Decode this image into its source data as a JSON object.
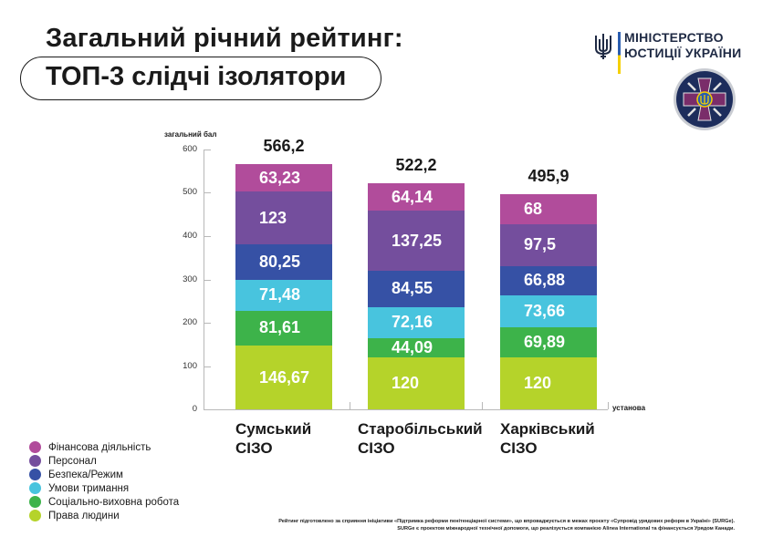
{
  "header": {
    "title_line1": "Загальний річний рейтинг:",
    "title_line2": "ТОП-3 слідчі ізолятори"
  },
  "ministry": {
    "line1": "МІНІСТЕРСТВО",
    "line2": "ЮСТИЦІЇ УКРАЇНИ"
  },
  "chart_data": {
    "type": "bar",
    "stacked": true,
    "title": "Загальний річний рейтинг: ТОП-3 слідчі ізолятори",
    "ylabel": "загальний бал",
    "xlabel": "установа",
    "ylim": [
      0,
      600
    ],
    "yticks": [
      "0",
      "100",
      "200",
      "300",
      "400",
      "500",
      "600"
    ],
    "grid": false,
    "legend_position": "bottom-left",
    "categories": [
      "Сумський СІЗО",
      "Старобільський СІЗО",
      "Харківський СІЗО"
    ],
    "category_lines": [
      [
        "Сумський",
        "СІЗО"
      ],
      [
        "Старобільський",
        "СІЗО"
      ],
      [
        "Харківський",
        "СІЗО"
      ]
    ],
    "totals": [
      "566,2",
      "522,2",
      "495,9"
    ],
    "series": [
      {
        "name": "Права людини",
        "color": "#b5d32a",
        "values": [
          146.67,
          120,
          120
        ],
        "labels": [
          "146,67",
          "120",
          "120"
        ]
      },
      {
        "name": "Соціально-виховна робота",
        "color": "#3db34a",
        "values": [
          81.61,
          44.09,
          69.89
        ],
        "labels": [
          "81,61",
          "44,09",
          "69,89"
        ]
      },
      {
        "name": "Умови тримання",
        "color": "#48c4de",
        "values": [
          71.48,
          72.16,
          73.66
        ],
        "labels": [
          "71,48",
          "72,16",
          "73,66"
        ]
      },
      {
        "name": "Безпека/Режим",
        "color": "#3651a5",
        "values": [
          80.25,
          84.55,
          66.88
        ],
        "labels": [
          "80,25",
          "84,55",
          "66,88"
        ]
      },
      {
        "name": "Персонал",
        "color": "#744e9d",
        "values": [
          123,
          137.25,
          97.5
        ],
        "labels": [
          "123",
          "137,25",
          "97,5"
        ]
      },
      {
        "name": "Фінансова діяльність",
        "color": "#b14c9b",
        "values": [
          63.23,
          64.14,
          68
        ],
        "labels": [
          "63,23",
          "64,14",
          "68"
        ]
      }
    ]
  },
  "legend": {
    "items": [
      {
        "label": "Фінансова діяльність",
        "color": "#b14c9b"
      },
      {
        "label": "Персонал",
        "color": "#744e9d"
      },
      {
        "label": "Безпека/Режим",
        "color": "#3651a5"
      },
      {
        "label": "Умови тримання",
        "color": "#48c4de"
      },
      {
        "label": "Соціально-виховна робота",
        "color": "#3db34a"
      },
      {
        "label": "Права людини",
        "color": "#b5d32a"
      }
    ]
  },
  "footnote": {
    "line1": "Рейтинг підготовлено за сприяння ініціативи «Підтримка реформи пенітенціарної системи», що впроваджується в межах проєкту «Супровід урядових реформ в Україні» (SURGe).",
    "line2": "SURGe є проектом міжнародної технічної допомоги, що реалізується компанією Alinea International та фінансується Урядом Канади."
  }
}
